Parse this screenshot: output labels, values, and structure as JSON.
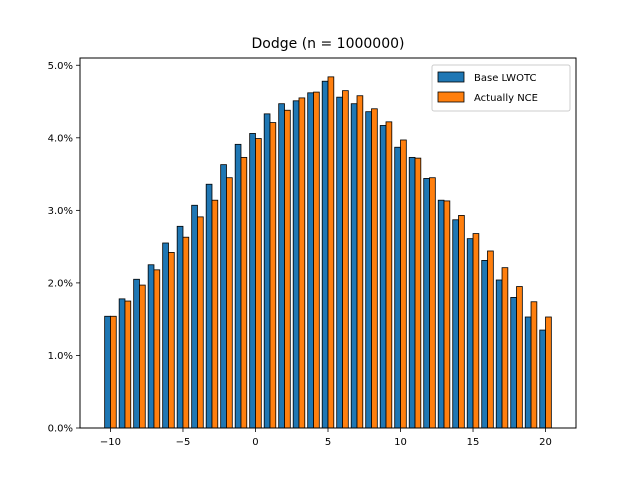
{
  "chart_data": {
    "type": "bar",
    "title": "Dodge (n = 1000000)",
    "xlabel": "",
    "ylabel": "",
    "x": [
      -10,
      -9,
      -8,
      -7,
      -6,
      -5,
      -4,
      -3,
      -2,
      -1,
      0,
      1,
      2,
      3,
      4,
      5,
      6,
      7,
      8,
      9,
      10,
      11,
      12,
      13,
      14,
      15,
      16,
      17,
      18,
      19,
      20
    ],
    "series": [
      {
        "name": "Base LWOTC",
        "color": "#1f77b4",
        "values": [
          1.54,
          1.78,
          2.05,
          2.25,
          2.55,
          2.78,
          3.07,
          3.36,
          3.63,
          3.91,
          4.06,
          4.33,
          4.47,
          4.51,
          4.62,
          4.78,
          4.56,
          4.47,
          4.36,
          4.17,
          3.87,
          3.73,
          3.44,
          3.14,
          2.87,
          2.61,
          2.31,
          2.04,
          1.8,
          1.53,
          1.35
        ]
      },
      {
        "name": "Actually NCE",
        "color": "#ff7f0e",
        "values": [
          1.54,
          1.75,
          1.97,
          2.18,
          2.42,
          2.63,
          2.91,
          3.14,
          3.45,
          3.73,
          3.99,
          4.21,
          4.38,
          4.55,
          4.63,
          4.84,
          4.65,
          4.58,
          4.4,
          4.22,
          3.97,
          3.72,
          3.45,
          3.13,
          2.93,
          2.68,
          2.44,
          2.21,
          1.95,
          1.74,
          1.53
        ]
      }
    ],
    "xlim": [
      -12.1,
      22.1
    ],
    "ylim": [
      0,
      5.1
    ],
    "xticks": [
      -10,
      -5,
      0,
      5,
      10,
      15,
      20
    ],
    "yticks": [
      0,
      1,
      2,
      3,
      4,
      5
    ],
    "ytick_format": "percent_1dp",
    "legend_position": "top-right",
    "grid": false
  }
}
